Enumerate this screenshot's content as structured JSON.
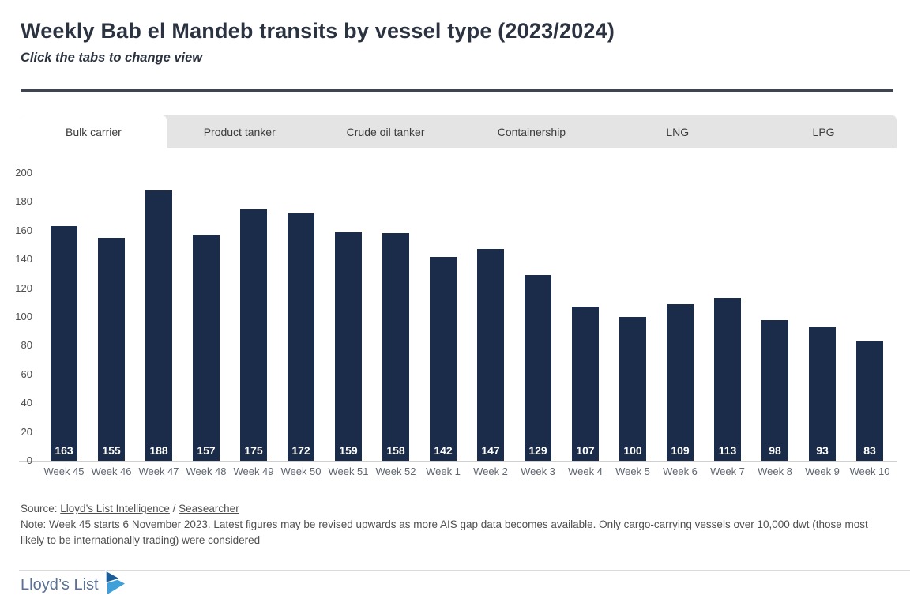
{
  "header": {
    "title": "Weekly Bab el Mandeb transits by vessel type (2023/2024)",
    "subtitle": "Click the tabs to change view"
  },
  "tabs": [
    {
      "label": "Bulk carrier",
      "active": true
    },
    {
      "label": "Product tanker",
      "active": false
    },
    {
      "label": "Crude oil tanker",
      "active": false
    },
    {
      "label": "Containership",
      "active": false
    },
    {
      "label": "LNG",
      "active": false
    },
    {
      "label": "LPG",
      "active": false
    }
  ],
  "chart_data": {
    "type": "bar",
    "title": "Weekly Bab el Mandeb transits by vessel type (2023/2024)",
    "categories": [
      "Week 45",
      "Week 46",
      "Week 47",
      "Week 48",
      "Week 49",
      "Week 50",
      "Week 51",
      "Week 52",
      "Week 1",
      "Week 2",
      "Week 3",
      "Week 4",
      "Week 5",
      "Week 6",
      "Week 7",
      "Week 8",
      "Week 9",
      "Week 10"
    ],
    "values": [
      163,
      155,
      188,
      157,
      175,
      172,
      159,
      158,
      142,
      147,
      129,
      107,
      100,
      109,
      113,
      98,
      93,
      83
    ],
    "xlabel": "",
    "ylabel": "",
    "ylim": [
      0,
      200
    ],
    "ytick_step": 20,
    "grid": false,
    "legend_position": "none",
    "bar_color": "#1a2c49",
    "value_label_color": "#ffffff"
  },
  "footer": {
    "source_prefix": "Source: ",
    "source_links": [
      "Lloyd’s List Intelligence",
      "Seasearcher"
    ],
    "source_separator": " / ",
    "note": "Note: Week 45 starts 6 November 2023. Latest figures may be revised upwards as more AIS gap data becomes available. Only cargo-carrying vessels over 10,000 dwt (those most likely to be internationally trading) were considered",
    "brand": "Lloyd’s List"
  },
  "colors": {
    "bar": "#1a2c49",
    "rule": "#3e4450",
    "tab_bg": "#e4e4e4",
    "active_tab_bg": "#ffffff",
    "title_text": "#2b3240",
    "axis_text": "#4d4d4d",
    "x_label_text": "#5f6670",
    "note_text": "#4f4f4f",
    "brand_text": "#5b7195",
    "logo_dark_blue": "#1b5d99",
    "logo_light_blue": "#3fa0d9"
  }
}
